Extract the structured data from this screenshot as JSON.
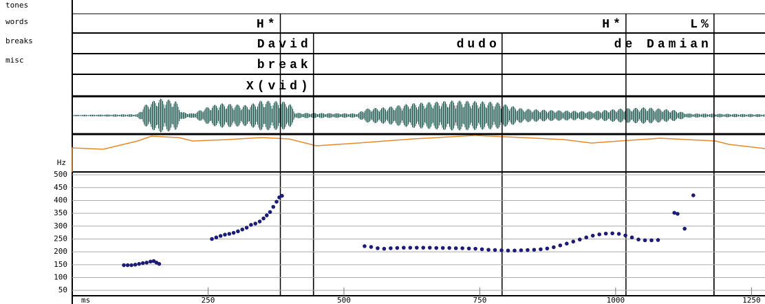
{
  "tiers": [
    {
      "name": "tones",
      "labels": [
        {
          "text": "H*",
          "time": 383
        },
        {
          "text": "H*",
          "time": 1019
        },
        {
          "text": "L%",
          "time": 1181
        }
      ]
    },
    {
      "name": "words",
      "labels": [
        {
          "text": "David",
          "time": 444
        },
        {
          "text": "dudo",
          "time": 791
        },
        {
          "text": "de Damian",
          "time": 1181
        }
      ]
    },
    {
      "name": "breaks",
      "labels": [
        {
          "text": "break",
          "time": 444
        }
      ]
    },
    {
      "name": "misc",
      "labels": [
        {
          "text": "X(vid)",
          "time": 444
        }
      ]
    }
  ],
  "chart_data": {
    "type": "scatter",
    "x_unit": "ms",
    "y_unit": "Hz",
    "color": "#1c1c78",
    "x": [
      95,
      102,
      109,
      116,
      123,
      130,
      137,
      144,
      150,
      155,
      160,
      257,
      265,
      273,
      281,
      289,
      297,
      305,
      313,
      321,
      329,
      337,
      345,
      352,
      358,
      364,
      370,
      376,
      381,
      386,
      538,
      550,
      562,
      574,
      586,
      598,
      610,
      622,
      634,
      646,
      658,
      670,
      682,
      694,
      706,
      718,
      730,
      742,
      754,
      766,
      778,
      790,
      802,
      814,
      826,
      838,
      850,
      862,
      874,
      886,
      898,
      910,
      922,
      934,
      946,
      958,
      970,
      982,
      994,
      1006,
      1018,
      1030,
      1042,
      1054,
      1066,
      1078,
      1108,
      1114,
      1127,
      1143
    ],
    "y": [
      148,
      148,
      148,
      150,
      153,
      156,
      158,
      162,
      164,
      158,
      153,
      250,
      256,
      262,
      267,
      270,
      274,
      280,
      287,
      294,
      305,
      310,
      318,
      330,
      342,
      355,
      375,
      395,
      412,
      418,
      222,
      219,
      214,
      212,
      214,
      215,
      216,
      216,
      216,
      216,
      216,
      215,
      215,
      215,
      214,
      214,
      213,
      212,
      210,
      208,
      207,
      206,
      205,
      205,
      206,
      207,
      208,
      210,
      213,
      218,
      225,
      232,
      240,
      248,
      256,
      263,
      268,
      271,
      272,
      270,
      264,
      256,
      248,
      245,
      245,
      246,
      352,
      348,
      290,
      420
    ],
    "xlim": [
      0,
      1266
    ],
    "ylim": [
      29,
      511
    ],
    "xticks": [
      250,
      500,
      750,
      1000,
      1250
    ],
    "yticks": [
      50,
      100,
      150,
      200,
      250,
      300,
      350,
      400,
      450,
      500
    ],
    "grid": true
  }
}
